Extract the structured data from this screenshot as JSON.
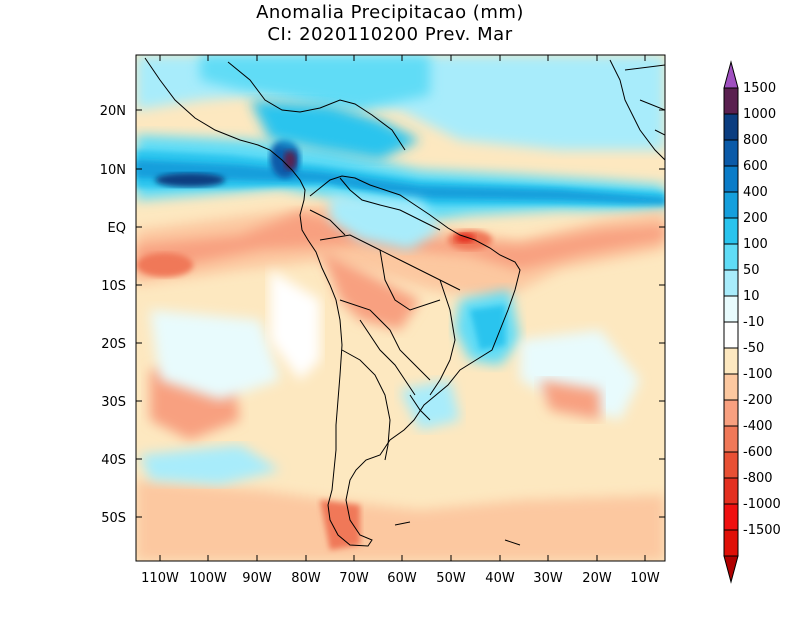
{
  "header": {
    "title_line1": "Anomalia Precipitacao (mm)",
    "title_line2": "CI: 2020110200 Prev. Mar"
  },
  "map": {
    "lat_labels": [
      "20N",
      "10N",
      "EQ",
      "10S",
      "20S",
      "30S",
      "40S",
      "50S"
    ],
    "lon_labels": [
      "110W",
      "100W",
      "90W",
      "80W",
      "70W",
      "60W",
      "50W",
      "40W",
      "30W",
      "20W",
      "10W"
    ]
  },
  "colorbar": {
    "labels": [
      "1500",
      "1000",
      "800",
      "600",
      "400",
      "200",
      "100",
      "50",
      "10",
      "-10",
      "-50",
      "-100",
      "-200",
      "-400",
      "-600",
      "-800",
      "-1000",
      "-1500"
    ],
    "colors": [
      "#a050c0",
      "#5a2050",
      "#0b3d80",
      "#0a5aa8",
      "#0a7cc8",
      "#159fdc",
      "#29c4ee",
      "#60dcf6",
      "#a8ecfb",
      "#e8fbfd",
      "#ffffff",
      "#fde8c0",
      "#fcc8a0",
      "#f8a080",
      "#f07858",
      "#e85034",
      "#e43020",
      "#f01010",
      "#e01008",
      "#b00000"
    ]
  }
}
